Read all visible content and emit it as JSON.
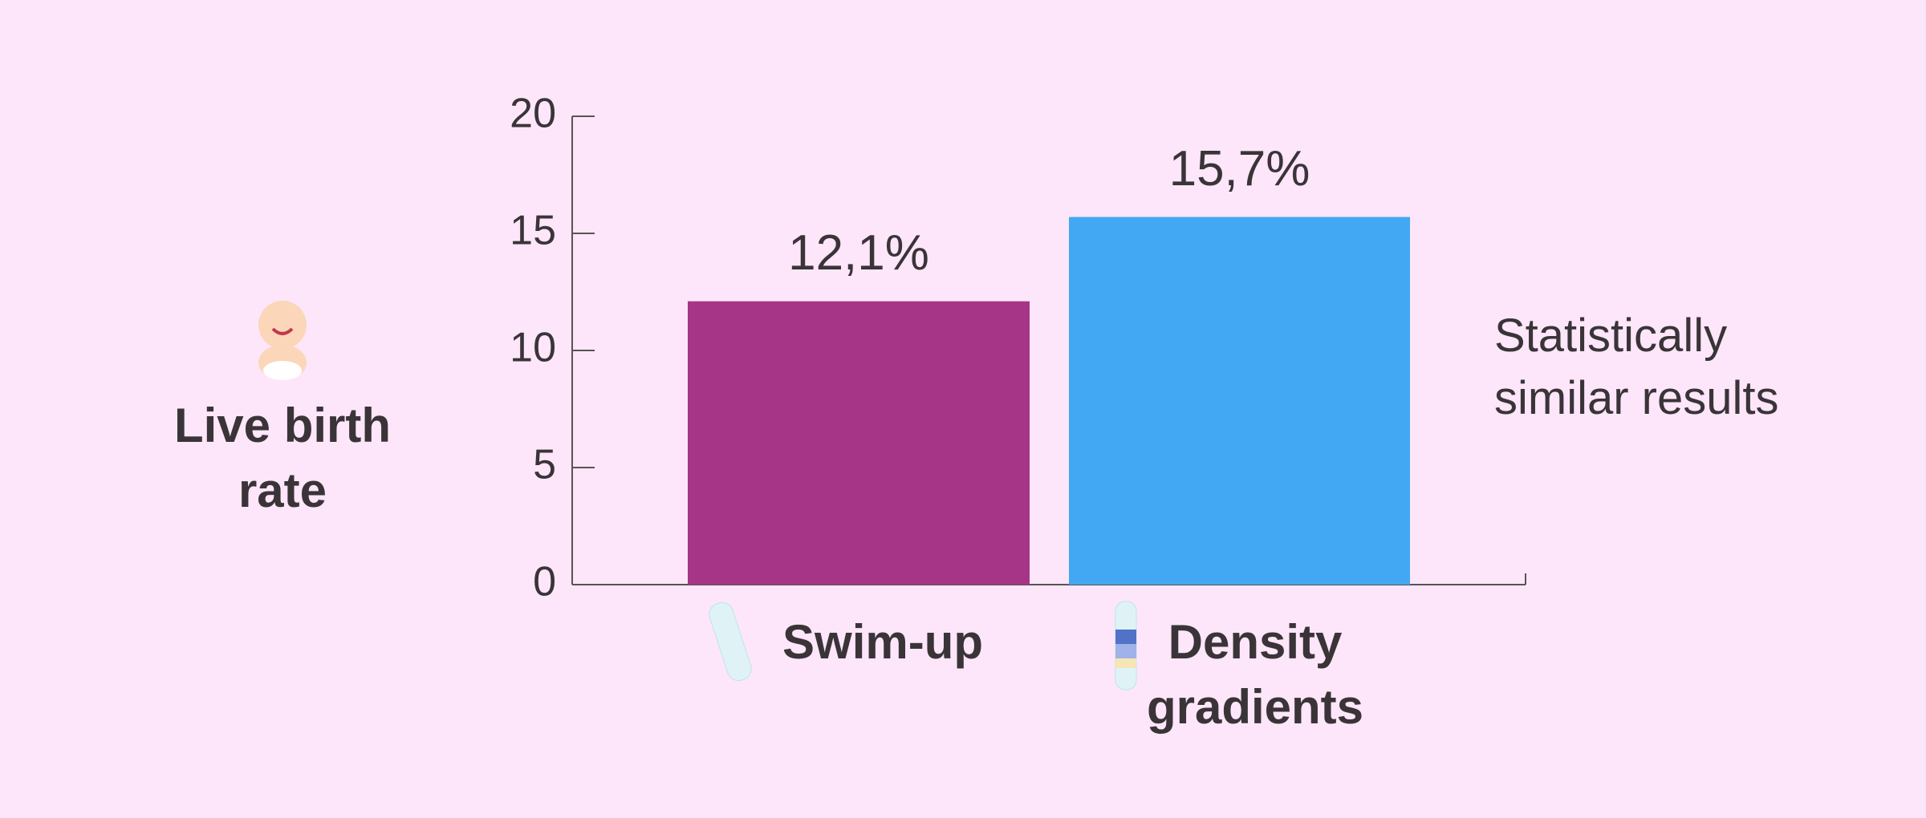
{
  "chart_data": {
    "type": "bar",
    "ylabel": "Live birth rate",
    "categories": [
      "Swim-up",
      "Density gradients"
    ],
    "values": [
      12.1,
      15.7
    ],
    "value_labels": [
      "12,1%",
      "15,7%"
    ],
    "colors": [
      "#a63587",
      "#42a8f3"
    ],
    "ylim": [
      0,
      20
    ],
    "yticks": [
      0,
      5,
      10,
      15,
      20
    ],
    "annotation": "Statistically similar results"
  }
}
